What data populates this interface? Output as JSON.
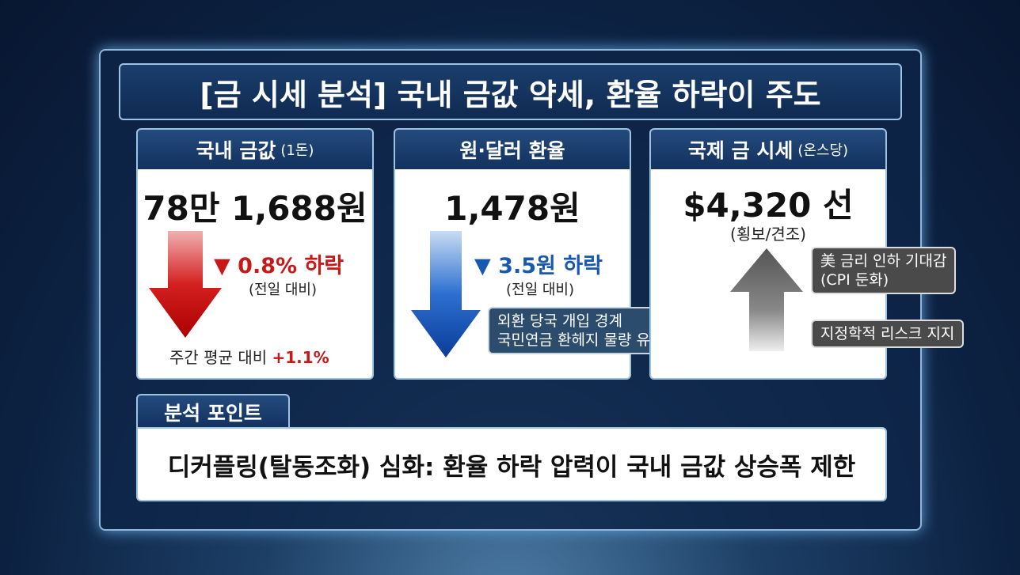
{
  "title": "[금 시세 분석] 국내 금값 약세, 환율 하락이 주도",
  "cards": [
    {
      "header": "국내 금값",
      "header_unit": "(1돈)",
      "value": "78만 1,688원",
      "change": "▼ 0.8% 하락",
      "change_note": "(전일 대비)",
      "footer_label": "주간 평균 대비",
      "footer_value": "+1.1%"
    },
    {
      "header": "원·달러 환율",
      "value": "1,478원",
      "change": "▼ 3.5원 하락",
      "change_note": "(전일 대비)",
      "callout": [
        "외환 당국 개입 경계",
        "국민연금 환헤지 물량 유입"
      ]
    },
    {
      "header": "국제 금 시세",
      "header_unit": "(온스당)",
      "value": "$4,320 선",
      "value_note": "(횡보/견조)",
      "callouts": [
        [
          "美 금리 인하 기대감",
          "(CPI 둔화)"
        ],
        [
          "지정학적 리스크 지지"
        ]
      ]
    }
  ],
  "analysis": {
    "label": "분석 포인트",
    "text": "디커플링(탈동조화) 심화: 환율 하락 압력이 국내 금값 상승폭 제한"
  }
}
